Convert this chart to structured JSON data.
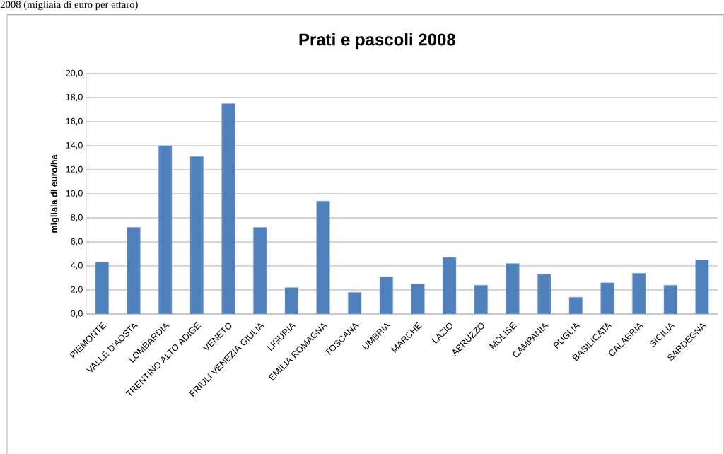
{
  "chart_data": {
    "type": "bar",
    "title": "Prati e pascoli 2008",
    "ylabel": "migliaia di euro/ha",
    "annotations": [
      "2008 (migliaia di euro per ettaro)"
    ],
    "categories": [
      "PIEMONTE",
      "VALLE D'AOSTA",
      "LOMBARDIA",
      "TRENTINO ALTO ADIGE",
      "VENETO",
      "FRIULI VENEZIA  GIULIA",
      "LIGURIA",
      "EMILIA ROMAGNA",
      "TOSCANA",
      "UMBRIA",
      "MARCHE",
      "LAZIO",
      "ABRUZZO",
      "MOLISE",
      "CAMPANIA",
      "PUGLIA",
      "BASILICATA",
      "CALABRIA",
      "SICILIA",
      "SARDEGNA"
    ],
    "values": [
      4.3,
      7.2,
      14.0,
      13.1,
      17.5,
      7.2,
      2.2,
      9.4,
      1.8,
      3.1,
      2.5,
      4.7,
      2.4,
      4.2,
      3.3,
      1.4,
      2.6,
      3.4,
      2.4,
      4.5
    ],
    "color": "#4f81bd",
    "ylim": [
      0,
      20
    ],
    "yticks": [
      {
        "value": 0,
        "label": "0,0"
      },
      {
        "value": 2,
        "label": "2,0"
      },
      {
        "value": 4,
        "label": "4,0"
      },
      {
        "value": 6,
        "label": "6,0"
      },
      {
        "value": 8,
        "label": "8,0"
      },
      {
        "value": 10,
        "label": "10,0"
      },
      {
        "value": 12,
        "label": "12,0"
      },
      {
        "value": 14,
        "label": "14,0"
      },
      {
        "value": 16,
        "label": "16,0"
      },
      {
        "value": 18,
        "label": "18,0"
      },
      {
        "value": 20,
        "label": "20,0"
      }
    ],
    "grid": "y"
  }
}
